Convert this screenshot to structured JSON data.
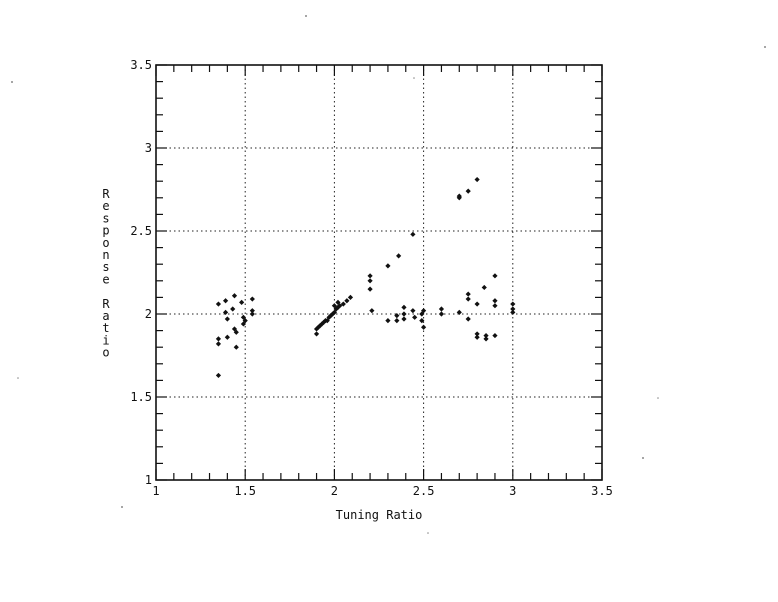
{
  "chart_data": {
    "type": "scatter",
    "title": "",
    "xlabel": "Tuning Ratio",
    "ylabel": "Response Ratio",
    "xlim": [
      1,
      3.5
    ],
    "ylim": [
      1,
      3.5
    ],
    "xticks": [
      1,
      1.5,
      2,
      2.5,
      3,
      3.5
    ],
    "yticks": [
      1,
      1.5,
      2,
      2.5,
      3,
      3.5
    ],
    "xtick_labels": [
      "1",
      "1.5",
      "2",
      "2.5",
      "3",
      "3.5"
    ],
    "ytick_labels": [
      "1",
      "1.5",
      "2",
      "2.5",
      "3",
      "3.5"
    ],
    "grid": true,
    "grid_style": "dotted",
    "legend": false,
    "marker_color": "#111111",
    "series": [
      {
        "points": [
          [
            1.35,
            2.06
          ],
          [
            1.35,
            1.85
          ],
          [
            1.35,
            1.82
          ],
          [
            1.35,
            1.63
          ],
          [
            1.39,
            2.08
          ],
          [
            1.39,
            2.01
          ],
          [
            1.4,
            1.97
          ],
          [
            1.4,
            1.86
          ],
          [
            1.43,
            2.03
          ],
          [
            1.44,
            2.11
          ],
          [
            1.44,
            1.91
          ],
          [
            1.45,
            1.8
          ],
          [
            1.45,
            1.89
          ],
          [
            1.48,
            2.07
          ],
          [
            1.49,
            1.98
          ],
          [
            1.49,
            1.94
          ],
          [
            1.5,
            1.96
          ],
          [
            1.54,
            2.09
          ],
          [
            1.54,
            2.02
          ],
          [
            1.54,
            2.0
          ],
          [
            1.9,
            1.88
          ],
          [
            1.9,
            1.91
          ],
          [
            1.91,
            1.92
          ],
          [
            1.92,
            1.93
          ],
          [
            1.93,
            1.94
          ],
          [
            1.94,
            1.95
          ],
          [
            1.95,
            1.96
          ],
          [
            1.96,
            1.96
          ],
          [
            1.97,
            1.98
          ],
          [
            1.98,
            1.99
          ],
          [
            1.99,
            2.0
          ],
          [
            2.0,
            2.01
          ],
          [
            2.01,
            2.03
          ],
          [
            2.02,
            2.04
          ],
          [
            2.03,
            2.05
          ],
          [
            2.05,
            2.06
          ],
          [
            2.07,
            2.08
          ],
          [
            2.09,
            2.1
          ],
          [
            2.0,
            2.05
          ],
          [
            2.02,
            2.07
          ],
          [
            2.2,
            2.23
          ],
          [
            2.2,
            2.2
          ],
          [
            2.2,
            2.15
          ],
          [
            2.21,
            2.02
          ],
          [
            2.3,
            1.96
          ],
          [
            2.3,
            2.29
          ],
          [
            2.35,
            1.99
          ],
          [
            2.35,
            1.96
          ],
          [
            2.36,
            2.35
          ],
          [
            2.39,
            2.04
          ],
          [
            2.39,
            2.0
          ],
          [
            2.39,
            1.97
          ],
          [
            2.44,
            2.48
          ],
          [
            2.44,
            2.02
          ],
          [
            2.45,
            1.98
          ],
          [
            2.49,
            2.0
          ],
          [
            2.49,
            1.96
          ],
          [
            2.5,
            2.02
          ],
          [
            2.5,
            1.92
          ],
          [
            2.6,
            2.03
          ],
          [
            2.6,
            2.0
          ],
          [
            2.7,
            2.7
          ],
          [
            2.7,
            2.71
          ],
          [
            2.7,
            2.01
          ],
          [
            2.75,
            2.74
          ],
          [
            2.75,
            2.12
          ],
          [
            2.75,
            2.09
          ],
          [
            2.75,
            1.97
          ],
          [
            2.8,
            2.81
          ],
          [
            2.8,
            2.06
          ],
          [
            2.8,
            1.88
          ],
          [
            2.8,
            1.86
          ],
          [
            2.84,
            2.16
          ],
          [
            2.85,
            1.87
          ],
          [
            2.85,
            1.85
          ],
          [
            2.9,
            2.23
          ],
          [
            2.9,
            2.08
          ],
          [
            2.9,
            2.05
          ],
          [
            2.9,
            1.87
          ],
          [
            3.0,
            2.06
          ],
          [
            3.0,
            2.03
          ],
          [
            3.0,
            2.01
          ]
        ]
      }
    ]
  }
}
